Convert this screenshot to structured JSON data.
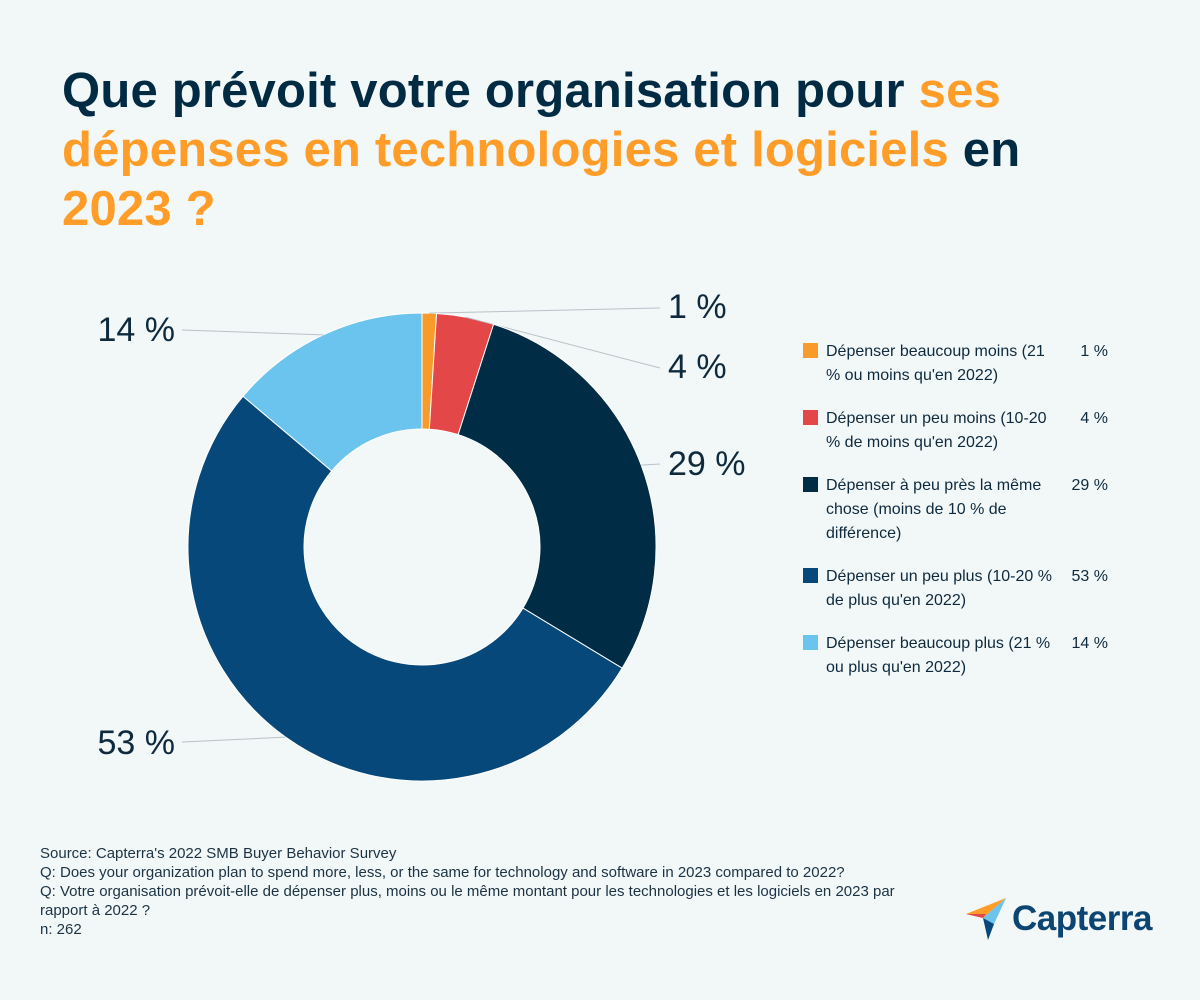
{
  "title": {
    "part1": "Que prévoit votre organisation pour ",
    "highlight1": "ses dépenses en technologies et logiciels",
    "part2": " en ",
    "highlight2": "2023  ?"
  },
  "colors": {
    "background": "#f2f7f8",
    "title_dark": "#002b43",
    "title_accent": "#ff9d28"
  },
  "chart_data": {
    "type": "pie",
    "style": "donut",
    "categories": [
      "Dépenser beaucoup moins (21 % ou moins qu'en 2022)",
      "Dépenser un peu moins (10-20 % de moins qu'en 2022)",
      "Dépenser à peu près la même chose (moins de 10 % de différence)",
      "Dépenser un peu plus (10-20 % de plus qu'en 2022)",
      "Dépenser beaucoup plus (21 % ou plus qu'en 2022)"
    ],
    "values": [
      1,
      4,
      29,
      53,
      14
    ],
    "value_labels": [
      "1 %",
      "4 %",
      "29 %",
      "53 %",
      "14 %"
    ],
    "colors": [
      "#f89b2a",
      "#e44747",
      "#002c45",
      "#054879",
      "#6bc4ee"
    ],
    "legend_position": "right"
  },
  "legend": {
    "items": [
      {
        "label": "Dépenser beaucoup moins (21 % ou moins qu'en 2022)",
        "value": "1 %"
      },
      {
        "label": "Dépenser un peu moins (10-20 % de moins qu'en 2022)",
        "value": "4 %"
      },
      {
        "label": "Dépenser à peu près la même chose (moins de 10 % de différence)",
        "value": "29 %"
      },
      {
        "label": "Dépenser un peu plus (10-20 % de plus qu'en 2022)",
        "value": "53 %"
      },
      {
        "label": "Dépenser beaucoup plus (21 % ou plus qu'en 2022)",
        "value": "14 %"
      }
    ]
  },
  "footer": {
    "source": "Source: Capterra's 2022 SMB Buyer Behavior Survey",
    "question_en": "Q: Does your organization plan to spend more, less, or the same for technology and software in 2023 compared to 2022?",
    "question_fr": "Q: Votre organisation prévoit-elle de dépenser plus, moins ou le même montant pour les technologies et les logiciels en 2023 par rapport à 2022 ?",
    "sample": "n: 262"
  },
  "logo": {
    "text": "Capterra",
    "icon": "capterra-arrow-icon"
  }
}
